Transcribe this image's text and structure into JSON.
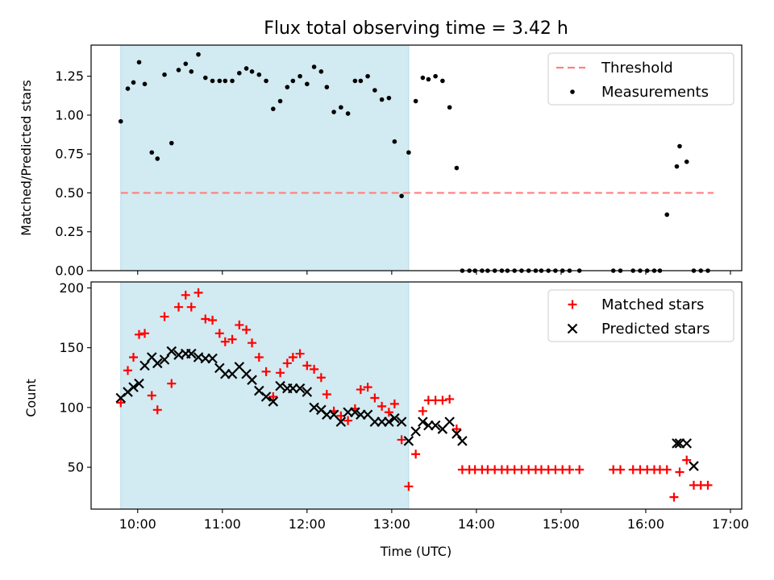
{
  "chart_data": [
    {
      "type": "scatter",
      "title": "Flux total observing time = 3.42 h",
      "xlabel": "",
      "ylabel": "Matched/Predicted stars",
      "xlim": [
        "09:27",
        "17:08"
      ],
      "ylim": [
        0,
        1.45
      ],
      "yticks": [
        "0.00",
        "0.25",
        "0.50",
        "0.75",
        "1.00",
        "1.25"
      ],
      "shaded_range": [
        "09:48",
        "13:12"
      ],
      "shade_color": "#add8e6",
      "threshold": {
        "name": "Threshold",
        "y": 0.5,
        "x_range": [
          "09:48",
          "16:48"
        ],
        "color": "#ff7f7f"
      },
      "series": [
        {
          "name": "Measurements",
          "color": "#000000",
          "x": [
            "09:48",
            "09:53",
            "09:57",
            "10:01",
            "10:05",
            "10:10",
            "10:14",
            "10:19",
            "10:24",
            "10:29",
            "10:34",
            "10:38",
            "10:43",
            "10:48",
            "10:53",
            "10:58",
            "11:02",
            "11:07",
            "11:12",
            "11:17",
            "11:21",
            "11:26",
            "11:31",
            "11:36",
            "11:41",
            "11:46",
            "11:50",
            "11:55",
            "12:00",
            "12:05",
            "12:10",
            "12:14",
            "12:19",
            "12:24",
            "12:29",
            "12:34",
            "12:38",
            "12:43",
            "12:48",
            "12:53",
            "12:58",
            "13:02",
            "13:07",
            "13:12",
            "13:17",
            "13:22",
            "13:26",
            "13:31",
            "13:36",
            "13:41",
            "13:46",
            "13:50",
            "13:55",
            "13:59",
            "14:04",
            "14:08",
            "14:13",
            "14:18",
            "14:22",
            "14:27",
            "14:32",
            "14:37",
            "14:42",
            "14:46",
            "14:51",
            "14:56",
            "15:01",
            "15:06",
            "15:13",
            "15:37",
            "15:42",
            "15:51",
            "15:56",
            "16:01",
            "16:06",
            "16:10",
            "16:15",
            "16:22",
            "16:24",
            "16:29",
            "16:34",
            "16:39",
            "16:44"
          ],
          "y": [
            0.96,
            1.17,
            1.21,
            1.34,
            1.2,
            0.76,
            0.72,
            1.26,
            0.82,
            1.29,
            1.33,
            1.28,
            1.39,
            1.24,
            1.22,
            1.22,
            1.22,
            1.22,
            1.27,
            1.3,
            1.28,
            1.26,
            1.22,
            1.04,
            1.09,
            1.18,
            1.22,
            1.25,
            1.2,
            1.31,
            1.28,
            1.18,
            1.02,
            1.05,
            1.01,
            1.22,
            1.22,
            1.25,
            1.16,
            1.1,
            1.11,
            0.83,
            0.48,
            0.76,
            1.09,
            1.24,
            1.23,
            1.25,
            1.22,
            1.05,
            0.66,
            0,
            0,
            0,
            0,
            0,
            0,
            0,
            0,
            0,
            0,
            0,
            0,
            0,
            0,
            0,
            0,
            0,
            0,
            0,
            0,
            0,
            0,
            0,
            0,
            0,
            0.36,
            0.67,
            0.8,
            0.7,
            0,
            0,
            0
          ]
        }
      ],
      "legend": {
        "position": "top-right",
        "entries": [
          "Threshold",
          "Measurements"
        ]
      }
    },
    {
      "type": "scatter",
      "xlabel": "Time (UTC)",
      "ylabel": "Count",
      "xlim": [
        "09:27",
        "17:08"
      ],
      "ylim": [
        15,
        205
      ],
      "yticks": [
        "50",
        "100",
        "150",
        "200"
      ],
      "xticks": [
        "10:00",
        "11:00",
        "12:00",
        "13:00",
        "14:00",
        "15:00",
        "16:00",
        "17:00"
      ],
      "shaded_range": [
        "09:48",
        "13:12"
      ],
      "series": [
        {
          "name": "Matched stars",
          "color": "#ff0000",
          "marker": "+",
          "x": [
            "09:48",
            "09:53",
            "09:57",
            "10:01",
            "10:05",
            "10:10",
            "10:14",
            "10:19",
            "10:24",
            "10:29",
            "10:34",
            "10:38",
            "10:43",
            "10:48",
            "10:53",
            "10:58",
            "11:02",
            "11:07",
            "11:12",
            "11:17",
            "11:21",
            "11:26",
            "11:31",
            "11:36",
            "11:41",
            "11:46",
            "11:50",
            "11:55",
            "12:00",
            "12:05",
            "12:10",
            "12:14",
            "12:19",
            "12:24",
            "12:29",
            "12:34",
            "12:38",
            "12:43",
            "12:48",
            "12:53",
            "12:58",
            "13:02",
            "13:07",
            "13:12",
            "13:17",
            "13:22",
            "13:26",
            "13:31",
            "13:36",
            "13:41",
            "13:46",
            "13:50",
            "13:55",
            "13:59",
            "14:04",
            "14:08",
            "14:13",
            "14:18",
            "14:22",
            "14:27",
            "14:32",
            "14:37",
            "14:42",
            "14:46",
            "14:51",
            "14:56",
            "15:01",
            "15:06",
            "15:13",
            "15:37",
            "15:42",
            "15:51",
            "15:56",
            "16:01",
            "16:06",
            "16:10",
            "16:15",
            "16:20",
            "16:24",
            "16:29",
            "16:34",
            "16:39",
            "16:44"
          ],
          "y": [
            104,
            131,
            142,
            161,
            162,
            110,
            98,
            176,
            120,
            184,
            194,
            184,
            196,
            174,
            173,
            162,
            155,
            157,
            169,
            165,
            154,
            142,
            130,
            109,
            129,
            137,
            142,
            145,
            135,
            132,
            125,
            111,
            97,
            93,
            89,
            99,
            115,
            117,
            108,
            101,
            96,
            103,
            73,
            34,
            61,
            97,
            106,
            106,
            106,
            107,
            82,
            48,
            48,
            48,
            48,
            48,
            48,
            48,
            48,
            48,
            48,
            48,
            48,
            48,
            48,
            48,
            48,
            48,
            48,
            48,
            48,
            48,
            48,
            48,
            48,
            48,
            48,
            25,
            46,
            56,
            35,
            35,
            35
          ]
        },
        {
          "name": "Predicted stars",
          "color": "#000000",
          "marker": "x",
          "x": [
            "09:48",
            "09:53",
            "09:57",
            "10:01",
            "10:05",
            "10:10",
            "10:14",
            "10:19",
            "10:24",
            "10:29",
            "10:34",
            "10:38",
            "10:43",
            "10:48",
            "10:53",
            "10:58",
            "11:02",
            "11:07",
            "11:12",
            "11:17",
            "11:21",
            "11:26",
            "11:31",
            "11:36",
            "11:41",
            "11:46",
            "11:50",
            "11:55",
            "12:00",
            "12:05",
            "12:10",
            "12:14",
            "12:19",
            "12:24",
            "12:29",
            "12:34",
            "12:38",
            "12:43",
            "12:48",
            "12:53",
            "12:58",
            "13:02",
            "13:07",
            "13:12",
            "13:17",
            "13:22",
            "13:26",
            "13:31",
            "13:36",
            "13:41",
            "13:46",
            "13:50",
            "16:22",
            "16:24",
            "16:29",
            "16:34"
          ],
          "y": [
            108,
            113,
            117,
            120,
            135,
            142,
            137,
            140,
            147,
            144,
            145,
            145,
            142,
            141,
            141,
            133,
            128,
            128,
            134,
            128,
            123,
            114,
            109,
            105,
            118,
            116,
            116,
            116,
            113,
            100,
            98,
            94,
            94,
            88,
            96,
            96,
            94,
            94,
            88,
            88,
            88,
            91,
            88,
            72,
            80,
            88,
            85,
            85,
            82,
            88,
            78,
            72,
            70,
            70,
            70,
            51
          ]
        }
      ],
      "legend": {
        "position": "top-right",
        "entries": [
          "Matched stars",
          "Predicted stars"
        ]
      }
    }
  ]
}
